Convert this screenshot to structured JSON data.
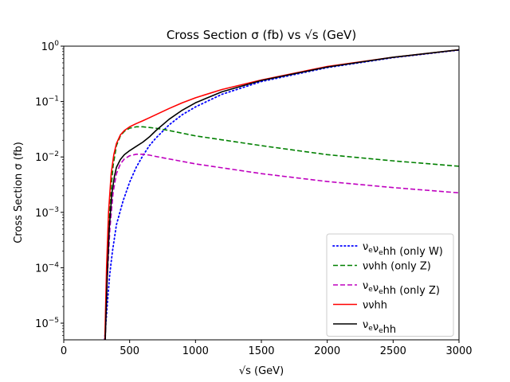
{
  "chart_data": {
    "type": "line",
    "title": "Cross Section σ (fb) vs √s (GeV)",
    "xlabel": "√s (GeV)",
    "ylabel": "Cross Section σ (fb)",
    "xscale": "linear",
    "yscale": "log",
    "xlim": [
      0,
      3000
    ],
    "ylim": [
      5e-06,
      1
    ],
    "x_ticks": [
      0,
      500,
      1000,
      1500,
      2000,
      2500,
      3000
    ],
    "x_tick_labels": [
      "0",
      "500",
      "1000",
      "1500",
      "2000",
      "2500",
      "3000"
    ],
    "y_ticks": [
      1e-05,
      0.0001,
      0.001,
      0.01,
      0.1,
      1
    ],
    "y_tick_labels": [
      {
        "base": "10",
        "exp": "−5"
      },
      {
        "base": "10",
        "exp": "−4"
      },
      {
        "base": "10",
        "exp": "−3"
      },
      {
        "base": "10",
        "exp": "−2"
      },
      {
        "base": "10",
        "exp": "−1"
      },
      {
        "base": "10",
        "exp": "0"
      }
    ],
    "grid": false,
    "legend_position": "lower-right",
    "series": [
      {
        "name": "νeνehh (only W)",
        "legend": {
          "parts": [
            [
              "ν",
              ""
            ],
            [
              "e",
              "sub"
            ],
            [
              "ν",
              ""
            ],
            [
              "e",
              "sub"
            ],
            [
              "hh (only W)",
              ""
            ]
          ]
        },
        "color": "#0000ff",
        "style": "dotted",
        "x": [
          310,
          320,
          335,
          350,
          370,
          400,
          450,
          500,
          550,
          600,
          650,
          700,
          800,
          900,
          1000,
          1200,
          1500,
          2000,
          2500,
          3000
        ],
        "y": [
          5e-06,
          1e-05,
          3e-05,
          8e-05,
          0.0002,
          0.0006,
          0.0016,
          0.0035,
          0.0065,
          0.0105,
          0.016,
          0.022,
          0.038,
          0.058,
          0.08,
          0.135,
          0.23,
          0.41,
          0.62,
          0.85
        ]
      },
      {
        "name": "ννhh (only Z)",
        "legend": {
          "parts": [
            [
              "ννhh (only Z)",
              ""
            ]
          ]
        },
        "color": "#008000",
        "style": "dashed",
        "x": [
          315,
          330,
          350,
          375,
          400,
          430,
          460,
          500,
          550,
          600,
          650,
          700,
          800,
          1000,
          1500,
          2000,
          2500,
          3000
        ],
        "y": [
          5e-06,
          0.00015,
          0.0015,
          0.007,
          0.016,
          0.024,
          0.029,
          0.033,
          0.035,
          0.035,
          0.034,
          0.033,
          0.03,
          0.024,
          0.016,
          0.011,
          0.0085,
          0.0068
        ]
      },
      {
        "name": "νeνehh (only Z)",
        "legend": {
          "parts": [
            [
              "ν",
              ""
            ],
            [
              "e",
              "sub"
            ],
            [
              "ν",
              ""
            ],
            [
              "e",
              "sub"
            ],
            [
              "hh (only Z)",
              ""
            ]
          ]
        },
        "color": "#bf00bf",
        "style": "dashed",
        "x": [
          315,
          330,
          350,
          375,
          400,
          430,
          460,
          500,
          550,
          600,
          650,
          700,
          800,
          1000,
          1500,
          2000,
          2500,
          3000
        ],
        "y": [
          5e-06,
          6e-05,
          0.0005,
          0.0023,
          0.005,
          0.0075,
          0.0092,
          0.0105,
          0.0112,
          0.0112,
          0.0108,
          0.0102,
          0.0092,
          0.0075,
          0.005,
          0.0036,
          0.0028,
          0.00225
        ]
      },
      {
        "name": "ννhh",
        "legend": {
          "parts": [
            [
              "ννhh",
              ""
            ]
          ]
        },
        "color": "#ff0000",
        "style": "solid",
        "x": [
          312,
          325,
          340,
          360,
          380,
          400,
          430,
          460,
          500,
          550,
          600,
          650,
          700,
          800,
          900,
          1000,
          1200,
          1500,
          2000,
          2500,
          3000
        ],
        "y": [
          5e-06,
          0.0001,
          0.001,
          0.005,
          0.011,
          0.0175,
          0.025,
          0.03,
          0.035,
          0.04,
          0.045,
          0.051,
          0.058,
          0.075,
          0.095,
          0.117,
          0.165,
          0.245,
          0.43,
          0.63,
          0.86
        ]
      },
      {
        "name": "νeνehh",
        "legend": {
          "parts": [
            [
              "ν",
              ""
            ],
            [
              "e",
              "sub"
            ],
            [
              "ν",
              ""
            ],
            [
              "e",
              "sub"
            ],
            [
              "hh",
              ""
            ]
          ]
        },
        "color": "#000000",
        "style": "solid",
        "x": [
          315,
          330,
          345,
          365,
          385,
          400,
          430,
          460,
          500,
          550,
          600,
          650,
          700,
          800,
          900,
          1000,
          1200,
          1500,
          2000,
          2500,
          3000
        ],
        "y": [
          5e-06,
          7e-05,
          0.0005,
          0.0022,
          0.0045,
          0.0065,
          0.009,
          0.011,
          0.013,
          0.0155,
          0.0185,
          0.023,
          0.03,
          0.048,
          0.07,
          0.095,
          0.15,
          0.24,
          0.42,
          0.63,
          0.86
        ]
      }
    ]
  }
}
